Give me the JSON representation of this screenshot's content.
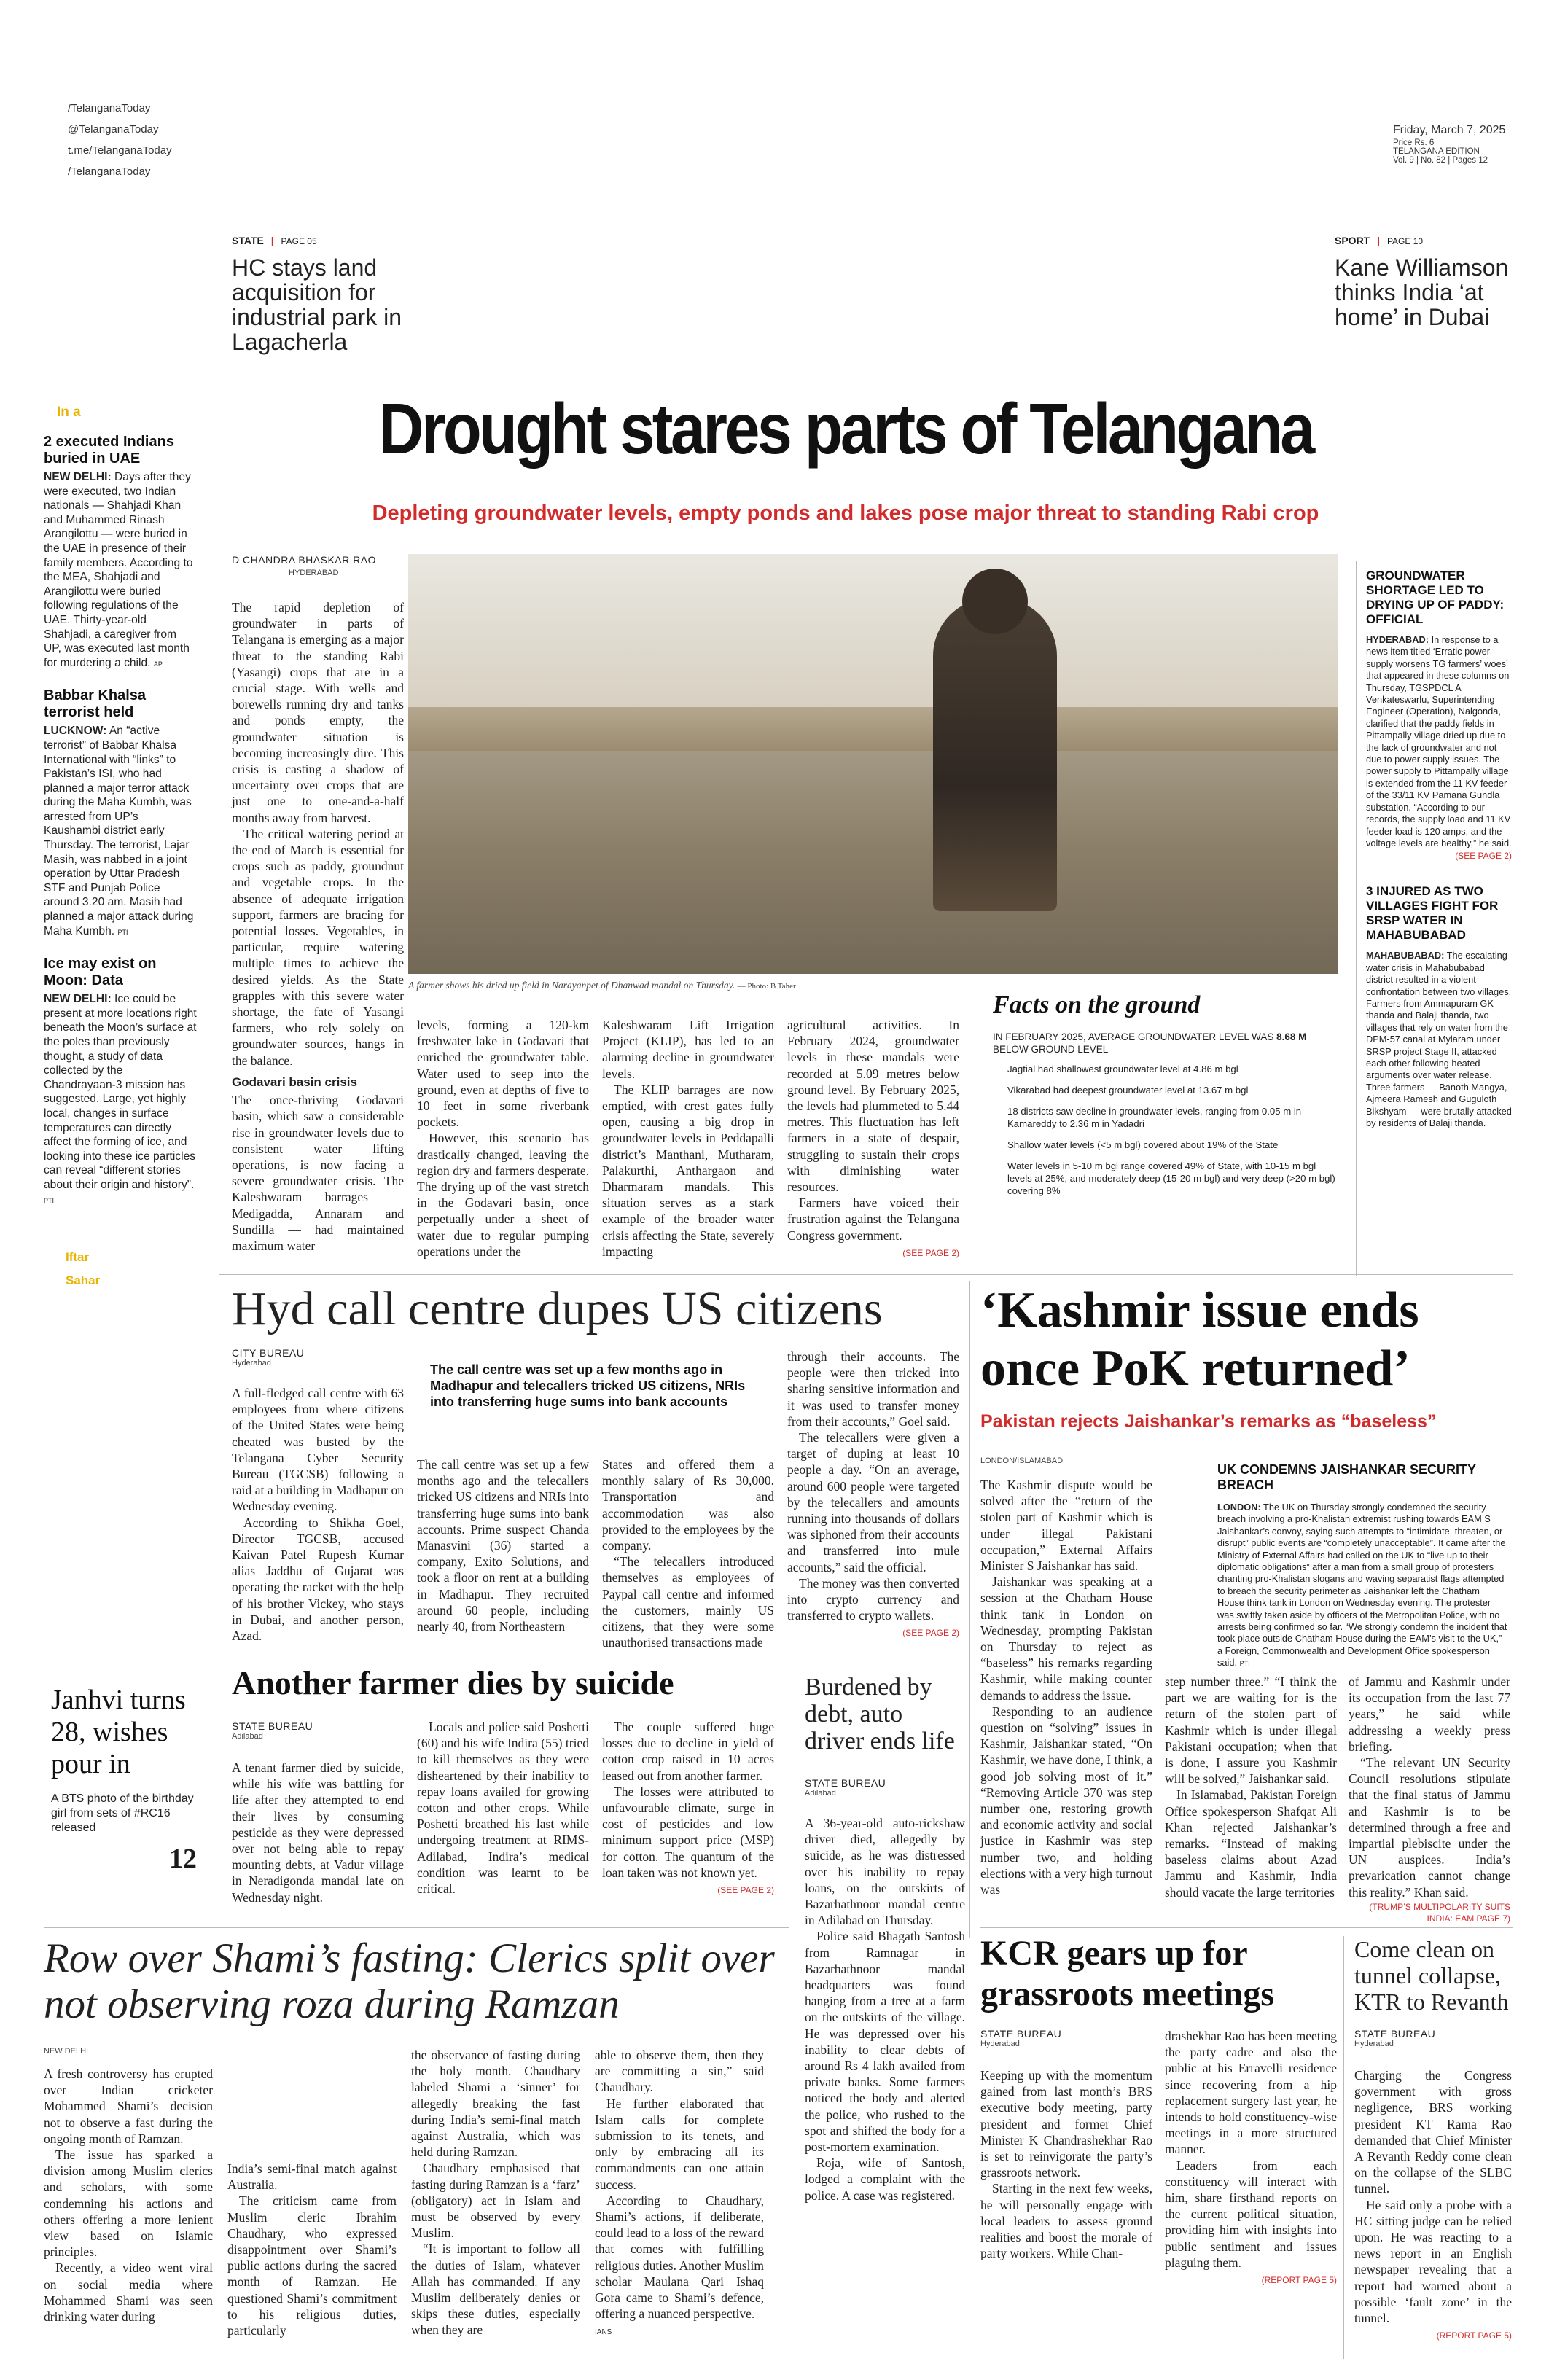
{
  "masthead": {
    "social": [
      "/TelanganaToday",
      "@TelanganaToday",
      "t.me/TelanganaToday",
      "/TelanganaToday"
    ],
    "date": "Friday, March 7, 2025",
    "price": "Price Rs. 6",
    "edition": "TELANGANA EDITION",
    "volume": "Vol. 9 | No. 82 | Pages 12"
  },
  "teasers": {
    "state": {
      "section": "STATE",
      "page": "PAGE 05",
      "headline": "HC stays land acquisition for industrial park in Lagacherla"
    },
    "sport": {
      "section": "SPORT",
      "page": "PAGE 10",
      "headline": "Kane Williamson thinks India ‘at home’ in Dubai"
    }
  },
  "in_a_nutshell": {
    "label": "In a",
    "items": [
      {
        "headline": "2 executed Indians buried in UAE",
        "dateline": "NEW DELHI:",
        "body": "Days after they were executed, two Indian nationals — Shahjadi Khan and Muhammed Rinash Arangilottu — were buried in the UAE in presence of their family members. According to the MEA, Shahjadi and Arangilottu were buried following regulations of the UAE. Thirty-year-old Shahjadi, a caregiver from UP, was executed last month for murdering a child.",
        "credit": "AP"
      },
      {
        "headline": "Babbar Khalsa terrorist held",
        "dateline": "LUCKNOW:",
        "body": "An “active terrorist” of Babbar Khalsa International with “links” to Pakistan’s ISI, who had planned a major terror attack during the Maha Kumbh, was arrested from UP’s Kaushambi district early Thursday. The terrorist, Lajar Masih, was nabbed in a joint operation by Uttar Pradesh STF and Punjab Police around 3.20 am. Masih had planned a major attack during Maha Kumbh.",
        "credit": "PTI"
      },
      {
        "headline": "Ice may exist on Moon: Data",
        "dateline": "NEW DELHI:",
        "body": "Ice could be present at more locations right beneath the Moon’s surface at the poles than previously thought, a study of data collected by the Chandrayaan-3 mission has suggested. Large, yet highly local, changes in surface temperatures can directly affect the forming of ice, and looking into these ice particles can reveal “different stories about their origin and history”.",
        "credit": "PTI"
      }
    ],
    "iftar_label": "Iftar",
    "sahar_label": "Sahar"
  },
  "lead": {
    "headline": "Drought stares parts of Telangana",
    "subhead": "Depleting groundwater levels, empty ponds and lakes pose major threat to standing Rabi crop",
    "byline": "D CHANDRA BHASKAR RAO",
    "place": "HYDERABAD",
    "photo_caption": "A farmer shows his dried up field in Narayanpet of Dhanwad mandal on Thursday.",
    "photo_credit": "— Photo: B Taher",
    "col1": [
      "The rapid depletion of groundwater in parts of Telangana is emerging as a major threat to the standing Rabi (Yasangi) crops that are in a crucial stage. With wells and borewells running dry and tanks and ponds empty, the groundwater situation is becoming increasingly dire. This crisis is casting a shadow of uncertainty over crops that are just one to one-and-a-half months away from harvest.",
      "The critical watering period at the end of March is essential for crops such as paddy, groundnut and vegetable crops. In the absence of adequate irrigation support, farmers are bracing for potential losses. Vegetables, in particular, require watering multiple times to achieve the desired yields. As the State grapples with this severe water shortage, the fate of Yasangi farmers, who rely solely on groundwater sources, hangs in the balance."
    ],
    "col1_subhead": "Godavari basin crisis",
    "col1b": "The once-thriving Godavari basin, which saw a considerable rise in groundwater levels due to consistent water lifting operations, is now facing a severe groundwater crisis. The Kaleshwaram barrages — Medigadda, Annaram and Sundilla — had maintained maximum water",
    "col2": [
      "levels, forming a 120-km freshwater lake in Godavari that enriched the groundwater table. Water used to seep into the ground, even at depths of five to 10 feet in some riverbank pockets.",
      "However, this scenario has drastically changed, leaving the region dry and farmers desperate. The drying up of the vast stretch in the Godavari basin, once perpetually under a sheet of water due to regular pumping operations under the"
    ],
    "col3": [
      "Kaleshwaram Lift Irrigation Project (KLIP), has led to an alarming decline in groundwater levels.",
      "The KLIP barrages are now emptied, with crest gates fully open, causing a big drop in groundwater levels in Peddapalli district’s Manthani, Mutharam, Palakurthi, Anthargaon and Dharmaram mandals. This situation serves as a stark example of the broader water crisis affecting the State, severely impacting"
    ],
    "col4": [
      "agricultural activities. In February 2024, groundwater levels in these mandals were recorded at 5.09 metres below ground level. By February 2025, the levels had plummeted to 5.44 metres. This fluctuation has left farmers in a state of despair, struggling to sustain their crops with diminishing water resources.",
      "Farmers have voiced their frustration against the Telangana Congress government."
    ],
    "see_page": "(SEE PAGE 2)"
  },
  "facts": {
    "title": "Facts on the ground",
    "lead": "IN FEBRUARY 2025, AVERAGE GROUNDWATER LEVEL WAS",
    "lead_value": "8.68 M",
    "lead_tail": "BELOW GROUND LEVEL",
    "items": [
      "Jagtial had shallowest groundwater level at 4.86 m bgl",
      "Vikarabad had deepest groundwater level at 13.67 m bgl",
      "18 districts saw decline in groundwater levels, ranging from 0.05 m in Kamareddy to 2.36 m in Yadadri",
      "Shallow water levels (<5 m bgl) covered about 19% of the State",
      "Water levels in 5-10 m bgl range covered 49% of State, with 10-15 m bgl levels at 25%, and moderately deep (15-20 m bgl) and very deep (>20 m bgl) covering 8%"
    ]
  },
  "right_briefs": [
    {
      "headline": "GROUNDWATER SHORTAGE LED TO DRYING UP OF PADDY: OFFICIAL",
      "dateline": "HYDERABAD:",
      "body": "In response to a news item titled ‘Erratic power supply worsens TG farmers’ woes’ that appeared in these columns on Thursday, TGSPDCL A Venkateswarlu, Superintending Engineer (Operation), Nalgonda, clarified that the paddy fields in Pittampally village dried up due to the lack of groundwater and not due to power supply issues. The power supply to Pittampally village is extended from the 11 KV feeder of the 33/11 KV Pamana Gundla substation. “According to our records, the supply load and 11 KV feeder load is 120 amps, and the voltage levels are healthy,” he said.",
      "see": "(SEE PAGE 2)"
    },
    {
      "headline": "3 INJURED AS TWO VILLAGES FIGHT FOR SRSP WATER IN MAHABUBABAD",
      "dateline": "MAHABUBABAD:",
      "body": "The escalating water crisis in Mahabubabad district resulted in a violent confrontation between two villages. Farmers from Ammapuram GK thanda and Balaji thanda, two villages that rely on water from the DPM-57 canal at Mylaram under SRSP project Stage II, attacked each other following heated arguments over water release. Three farmers — Banoth Mangya, Ajmeera Ramesh and Guguloth Bikshyam — were brutally attacked by residents of Balaji thanda."
    }
  ],
  "callcentre": {
    "headline": "Hyd call centre dupes US citizens",
    "byline": "CITY BUREAU",
    "place": "Hyderabad",
    "pullquote": "The call centre was set up a few months ago in Madhapur and telecallers tricked US citizens, NRIs into transferring huge sums into bank accounts",
    "col1": [
      "A full-fledged call centre with 63 employees from where citizens of the United States were being cheated was busted by the Telangana Cyber Security Bureau (TGCSB) following a raid at a building in Madhapur on Wednesday evening.",
      "According to Shikha Goel, Director TGCSB, accused Kaivan Patel Rupesh Kumar alias Jaddhu of Gujarat was operating the racket with the help of his brother Vickey, who stays in Dubai, and another person, Azad."
    ],
    "col2": [
      "The call centre was set up a few months ago and the telecallers tricked US citizens and NRIs into transferring huge sums into bank accounts. Prime suspect Chanda Manasvini (36) started a company, Exito Solutions, and took a floor on rent at a building in Madhapur. They recruited around 60 people, including nearly 40, from Northeastern"
    ],
    "col3": [
      "States and offered them a monthly salary of Rs 30,000. Transportation and accommodation was also provided to the employees by the company.",
      "“The telecallers introduced themselves as employees of Paypal call centre and informed the customers, mainly US citizens, that they were some unauthorised transactions made"
    ],
    "col4": [
      "through their accounts. The people were then tricked into sharing sensitive information and it was used to transfer money from their accounts,” Goel said.",
      "The telecallers were given a target of duping at least 10 people a day. “On an average, around 600 people were targeted by the telecallers and amounts running into thousands of dollars was siphoned from their accounts and transferred into mule accounts,” said the official.",
      "The money was then converted into crypto currency and transferred to crypto wallets."
    ],
    "see": "(SEE PAGE 2)"
  },
  "janhvi": {
    "headline": "Janhvi turns 28, wishes pour in",
    "body": "A BTS photo of the birthday girl from sets of #RC16 released",
    "page": "12"
  },
  "farmer": {
    "headline": "Another farmer dies by suicide",
    "byline": "STATE BUREAU",
    "place": "Adilabad",
    "col1": [
      "A tenant farmer died by suicide, while his wife was battling for life after they attempted to end their lives by consuming pesticide as they were depressed over not being able to repay mounting debts, at Vadur village in Neradigonda mandal late on Wednesday night."
    ],
    "col2": [
      "Locals and police said Poshetti (60) and his wife Indira (55) tried to kill themselves as they were disheartened by their inability to repay loans availed for growing cotton and other crops. While Poshetti breathed his last while undergoing treatment at RIMS-Adilabad, Indira’s medical condition was learnt to be critical."
    ],
    "col3": [
      "The couple suffered huge losses due to decline in yield of cotton crop raised in 10 acres leased out from another farmer.",
      "The losses were attributed to unfavourable climate, surge in cost of pesticides and low minimum support price (MSP) for cotton. The quantum of the loan taken was not known yet."
    ],
    "see": "(SEE PAGE 2)"
  },
  "autodriver": {
    "headline": "Burdened by debt, auto driver ends life",
    "byline": "STATE BUREAU",
    "place": "Adilabad",
    "body": [
      "A 36-year-old auto-rickshaw driver died, allegedly by suicide, as he was distressed over his inability to repay loans, on the outskirts of Bazarhathnoor mandal centre in Adilabad on Thursday.",
      "Police said Bhagath Santosh from Ramnagar in Bazarhathnoor mandal headquarters was found hanging from a tree at a farm on the outskirts of the village. He was depressed over his inability to clear debts of around Rs 4 lakh availed from private banks. Some farmers noticed the body and alerted the police, who rushed to the spot and shifted the body for a post-mortem examination.",
      "Roja, wife of Santosh, lodged a complaint with the police. A case was registered."
    ]
  },
  "kashmir": {
    "headline": "‘Kashmir issue ends once PoK returned’",
    "subhead": "Pakistan rejects Jaishankar’s remarks as “baseless”",
    "box_headline": "UK CONDEMNS JAISHANKAR SECURITY BREACH",
    "box_dateline": "LONDON:",
    "box_body": "The UK on Thursday strongly condemned the security breach involving a pro-Khalistan extremist rushing towards EAM S Jaishankar’s convoy, saying such attempts to “intimidate, threaten, or disrupt” public events are “completely unacceptable”. It came after the Ministry of External Affairs had called on the UK to “live up to their diplomatic obligations” after a man from a small group of protesters chanting pro-Khalistan slogans and waving separatist flags attempted to breach the security perimeter as Jaishankar left the Chatham House think tank in London on Wednesday evening. The protester was swiftly taken aside by officers of the Metropolitan Police, with no arrests being confirmed so far. “We strongly condemn the incident that took place outside Chatham House during the EAM’s visit to the UK,” a Foreign, Commonwealth and Development Office spokesperson said.",
    "box_credit": "PTI",
    "byline": "LONDON/ISLAMABAD",
    "col1": [
      "The Kashmir dispute would be solved after the “return of the stolen part of Kashmir which is under illegal Pakistani occupation,” External Affairs Minister S Jaishankar has said.",
      "Jaishankar was speaking at a session at the Chatham House think tank in London on Wednesday, prompting Pakistan on Thursday to reject as “baseless” his remarks regarding Kashmir, while making counter demands to address the issue.",
      "Responding to an audience question on “solving” issues in Kashmir, Jaishankar stated, “On Kashmir, we have done, I think, a good job solving most of it.” “Removing Article 370 was step number one, restoring growth and economic activity and social justice in Kashmir was step number two, and holding elections with a very high turnout was"
    ],
    "col2": [
      "step number three.” “I think the part we are waiting for is the return of the stolen part of Kashmir which is under illegal Pakistani occupation; when that is done, I assure you Kashmir will be solved,” Jaishankar said.",
      "In Islamabad, Pakistan Foreign Office spokesperson Shafqat Ali Khan rejected Jaishankar’s remarks. “Instead of making baseless claims about Azad Jammu and Kashmir, India should vacate the large territories"
    ],
    "col3": [
      "of Jammu and Kashmir under its occupation from the last 77 years,” he said while addressing a weekly press briefing.",
      "“The relevant UN Security Council resolutions stipulate that the final status of Jammu and Kashmir is to be determined through a free and impartial plebiscite under the UN auspices. India’s prevarication cannot change this reality.” Khan said."
    ],
    "see": "(TRUMP’S MULTIPOLARITY SUITS INDIA: EAM PAGE 7)"
  },
  "shami": {
    "headline": "Row over Shami’s fasting: Clerics split over not observing roza during Ramzan",
    "place": "NEW DELHI",
    "col1": [
      "A fresh controversy has erupted over Indian cricketer Mohammed Shami’s decision not to observe a fast during the ongoing month of Ramzan.",
      "The issue has sparked a division among Muslim clerics and scholars, with some condemning his actions and others offering a more lenient view based on Islamic principles.",
      "Recently, a video went viral on social media where Mohammed Shami was seen drinking water during"
    ],
    "col2": [
      "India’s semi-final match against Australia.",
      "The criticism came from Muslim cleric Ibrahim Chaudhary, who expressed disappointment over Shami’s public actions during the sacred month of Ramzan. He questioned Shami’s commitment to his religious duties, particularly"
    ],
    "col3": [
      "the observance of fasting during the holy month. Chaudhary labeled Shami a ‘sinner’ for allegedly breaking the fast during India’s semi-final match against Australia, which was held during Ramzan.",
      "Chaudhary emphasised that fasting during Ramzan is a ‘farz’ (obligatory) act in Islam and must be observed by every Muslim.",
      "“It is important to follow all the duties of Islam, whatever Allah has commanded. If any Muslim deliberately denies or skips these duties, especially when they are"
    ],
    "col4": [
      "able to observe them, then they are committing a sin,” said Chaudhary.",
      "He further elaborated that Islam calls for complete submission to its tenets, and only by embracing all its commandments can one attain success.",
      "According to Chaudhary, Shami’s actions, if deliberate, could lead to a loss of the reward that comes with fulfilling religious duties. Another Muslim scholar Maulana Qari Ishaq Gora came to Shami’s defence, offering a nuanced perspective."
    ],
    "credit": "IANS"
  },
  "kcr": {
    "headline": "KCR gears up for grassroots meetings",
    "byline": "STATE BUREAU",
    "place": "Hyderabad",
    "col1": [
      "Keeping up with the momentum gained from last month’s BRS executive body meeting, party president and former Chief Minister K Chandrashekhar Rao is set to reinvigorate the party’s grassroots network.",
      "Starting in the next few weeks, he will personally engage with local leaders to assess ground realities and boost the morale of party workers. While Chan-"
    ],
    "col2": [
      "drashekhar Rao has been meeting the party cadre and also the public at his Erravelli residence since recovering from a hip replacement surgery last year, he intends to hold constituency-wise meetings in a more structured manner.",
      "Leaders from each constituency will interact with him, share firsthand reports on the current political situation, providing him with insights into public sentiment and issues plaguing them."
    ],
    "see": "(REPORT PAGE 5)"
  },
  "tunnel": {
    "headline": "Come clean on tunnel collapse, KTR to Revanth",
    "byline": "STATE BUREAU",
    "place": "Hyderabad",
    "body": [
      "Charging the Congress government with gross negligence, BRS working president KT Rama Rao demanded that Chief Minister A Revanth Reddy come clean on the collapse of the SLBC tunnel.",
      "He said only a probe with a HC sitting judge can be relied upon. He was reacting to a news report in an English newspaper revealing that a report had warned about a possible ‘fault zone’ in the tunnel."
    ],
    "see": "(REPORT PAGE 5)"
  }
}
